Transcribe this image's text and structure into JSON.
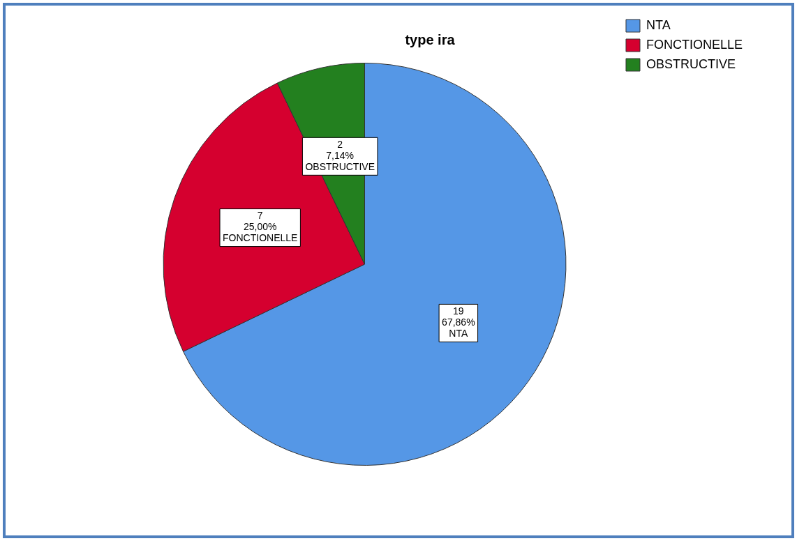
{
  "chart_data": {
    "type": "pie",
    "title": "type ira",
    "categories": [
      "NTA",
      "FONCTIONELLE",
      "OBSTRUCTIVE"
    ],
    "values": [
      19,
      7,
      2
    ],
    "colors": [
      "#5597e6",
      "#d5002f",
      "#23801f"
    ],
    "value_labels": [
      "19\n67,86%\nNTA",
      "7\n25,00%\nFONCTIONELLE",
      "2\n7,14%\nOBSTRUCTIVE"
    ],
    "legend": "top right"
  }
}
